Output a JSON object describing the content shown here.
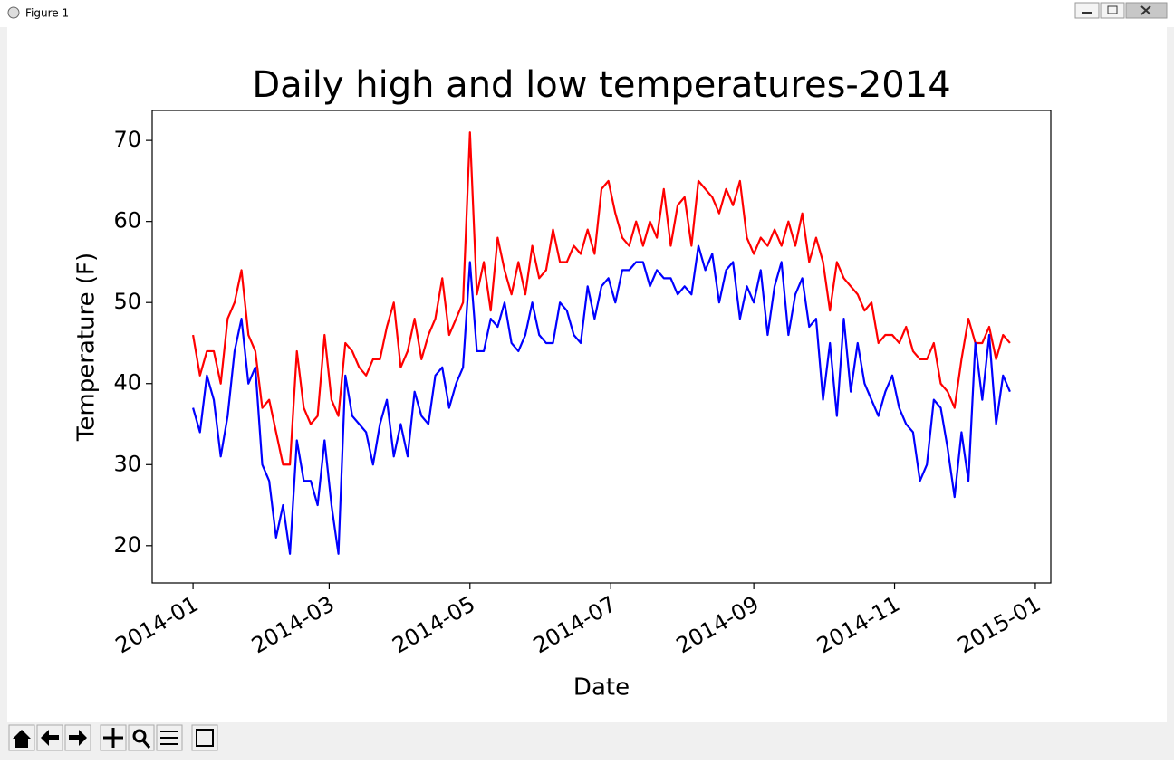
{
  "window": {
    "title": "Figure 1"
  },
  "chart_data": {
    "type": "line",
    "title": "Daily high and low temperatures-2014",
    "x_label": "Date",
    "y_label": "Temperature (F)",
    "x": [
      0,
      3,
      6,
      9,
      12,
      15,
      18,
      21,
      24,
      27,
      30,
      33,
      36,
      39,
      42,
      45,
      48,
      51,
      54,
      57,
      60,
      63,
      66,
      69,
      72,
      75,
      78,
      81,
      84,
      87,
      90,
      93,
      96,
      99,
      102,
      105,
      108,
      111,
      114,
      117,
      120,
      123,
      126,
      129,
      132,
      135,
      138,
      141,
      144,
      147,
      150,
      153,
      156,
      159,
      162,
      165,
      168,
      171,
      174,
      177,
      180,
      183,
      186,
      189,
      192,
      195,
      198,
      201,
      204,
      207,
      210,
      213,
      216,
      219,
      222,
      225,
      228,
      231,
      234,
      237,
      240,
      243,
      246,
      249,
      252,
      255,
      258,
      261,
      264,
      267,
      270,
      273,
      276,
      279,
      282,
      285,
      288,
      291,
      294,
      297,
      300,
      303,
      306,
      309,
      312,
      315,
      318,
      321,
      324,
      327,
      330,
      333,
      336,
      339,
      342,
      345,
      348,
      351,
      354
    ],
    "series": [
      {
        "color": "#ff0000",
        "values": [
          46,
          41,
          44,
          44,
          40,
          48,
          50,
          54,
          46,
          44,
          37,
          38,
          34,
          30,
          30,
          44,
          37,
          35,
          36,
          46,
          38,
          36,
          45,
          44,
          42,
          41,
          43,
          43,
          47,
          50,
          42,
          44,
          48,
          43,
          46,
          48,
          53,
          46,
          48,
          50,
          71,
          51,
          55,
          49,
          58,
          54,
          51,
          55,
          51,
          57,
          53,
          54,
          59,
          55,
          55,
          57,
          56,
          59,
          56,
          64,
          65,
          61,
          58,
          57,
          60,
          57,
          60,
          58,
          64,
          57,
          62,
          63,
          57,
          65,
          64,
          63,
          61,
          64,
          62,
          65,
          58,
          56,
          58,
          57,
          59,
          57,
          60,
          57,
          61,
          55,
          58,
          55,
          49,
          55,
          53,
          52,
          51,
          49,
          50,
          45,
          46,
          46,
          45,
          47,
          44,
          43,
          43,
          45,
          40,
          39,
          37,
          43,
          48,
          45,
          45,
          47,
          43,
          46,
          45
        ]
      },
      {
        "color": "#0000ff",
        "values": [
          37,
          34,
          41,
          38,
          31,
          36,
          44,
          48,
          40,
          42,
          30,
          28,
          21,
          25,
          19,
          33,
          28,
          28,
          25,
          33,
          25,
          19,
          41,
          36,
          35,
          34,
          30,
          35,
          38,
          31,
          35,
          31,
          39,
          36,
          35,
          41,
          42,
          37,
          40,
          42,
          55,
          44,
          44,
          48,
          47,
          50,
          45,
          44,
          46,
          50,
          46,
          45,
          45,
          50,
          49,
          46,
          45,
          52,
          48,
          52,
          53,
          50,
          54,
          54,
          55,
          55,
          52,
          54,
          53,
          53,
          51,
          52,
          51,
          57,
          54,
          56,
          50,
          54,
          55,
          48,
          52,
          50,
          54,
          46,
          52,
          55,
          46,
          51,
          53,
          47,
          48,
          38,
          45,
          36,
          48,
          39,
          45,
          40,
          38,
          36,
          39,
          41,
          37,
          35,
          34,
          28,
          30,
          38,
          37,
          32,
          26,
          34,
          28,
          45,
          38,
          46,
          35,
          41,
          39
        ]
      }
    ],
    "xlim": [
      -17.7,
      371.7
    ],
    "xticks": [
      {
        "value": 0,
        "label": "2014-01"
      },
      {
        "value": 59,
        "label": "2014-03"
      },
      {
        "value": 120,
        "label": "2014-05"
      },
      {
        "value": 181,
        "label": "2014-07"
      },
      {
        "value": 243,
        "label": "2014-09"
      },
      {
        "value": 304,
        "label": "2014-11"
      },
      {
        "value": 365,
        "label": "2015-01"
      }
    ],
    "ylim": [
      15.4,
      73.7
    ],
    "yticks": [
      20,
      30,
      40,
      50,
      60,
      70
    ]
  }
}
